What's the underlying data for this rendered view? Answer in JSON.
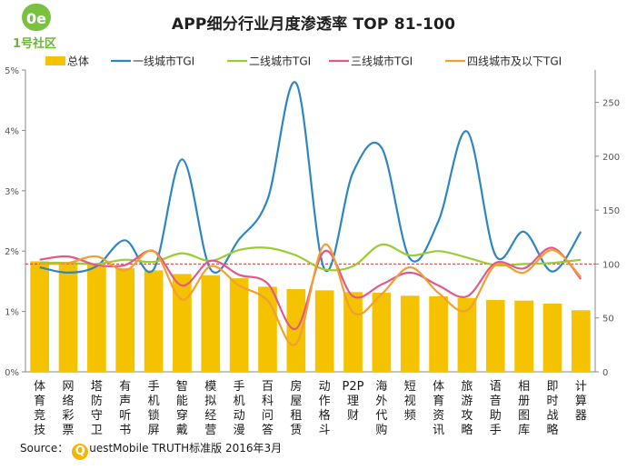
{
  "logo": {
    "text": "1号社区",
    "mark": "0e"
  },
  "title": "APP细分行业月度渗透率 TOP 81-100",
  "source": {
    "prefix": "Source：",
    "brand_initial": "Q",
    "rest": "uestMobile TRUTH标准版 2016年3月"
  },
  "chart_data": {
    "type": "bar+line",
    "title": "APP细分行业月度渗透率 TOP 81-100",
    "categories": [
      "体育竞技",
      "网络彩票",
      "塔防守卫",
      "有声听书",
      "手机锁屏",
      "智能穿戴",
      "模拟经营",
      "手机动漫",
      "百科问答",
      "房屋租赁",
      "动作格斗",
      "P2P理财",
      "海外代购",
      "短视频",
      "体育资讯",
      "旅游攻略",
      "语音助手",
      "相册图库",
      "即时战略",
      "计算器"
    ],
    "left_axis": {
      "ticks": [
        "0%",
        "1%",
        "2%",
        "3%",
        "4%",
        "5%"
      ],
      "min": 0,
      "max": 5
    },
    "right_axis": {
      "ticks": [
        "0",
        "50",
        "100",
        "150",
        "200",
        "250"
      ],
      "min": 0,
      "max": 280
    },
    "reference_line": {
      "axis": "right",
      "value": 100
    },
    "legend": [
      "总体",
      "一线城市TGI",
      "二线城市TGI",
      "三线城市TGI",
      "四线城市及以下TGI"
    ],
    "series": [
      {
        "name": "总体",
        "type": "bar",
        "axis": "left",
        "color": "#f5c200",
        "values": [
          1.83,
          1.8,
          1.77,
          1.72,
          1.68,
          1.62,
          1.6,
          1.55,
          1.41,
          1.37,
          1.35,
          1.32,
          1.31,
          1.26,
          1.25,
          1.22,
          1.19,
          1.18,
          1.13,
          1.02
        ]
      },
      {
        "name": "一线城市TGI",
        "type": "line",
        "axis": "right",
        "color": "#2e86c1",
        "values": [
          97,
          92,
          98,
          122,
          95,
          197,
          95,
          123,
          160,
          268,
          95,
          185,
          208,
          105,
          140,
          223,
          108,
          130,
          93,
          130
        ]
      },
      {
        "name": "二线城市TGI",
        "type": "line",
        "axis": "right",
        "color": "#9acd32",
        "values": [
          101,
          101,
          100,
          104,
          102,
          110,
          103,
          113,
          115,
          108,
          95,
          98,
          118,
          108,
          112,
          106,
          99,
          100,
          101,
          104
        ]
      },
      {
        "name": "三线城市TGI",
        "type": "line",
        "axis": "right",
        "color": "#e2588a",
        "values": [
          104,
          107,
          99,
          99,
          112,
          80,
          103,
          90,
          82,
          40,
          112,
          70,
          81,
          92,
          80,
          70,
          101,
          96,
          115,
          86
        ]
      },
      {
        "name": "四线城市及以下TGI",
        "type": "line",
        "axis": "right",
        "color": "#f0a030",
        "values": [
          100,
          101,
          107,
          94,
          112,
          67,
          98,
          80,
          66,
          26,
          118,
          55,
          72,
          97,
          73,
          57,
          99,
          92,
          113,
          88
        ]
      }
    ]
  }
}
